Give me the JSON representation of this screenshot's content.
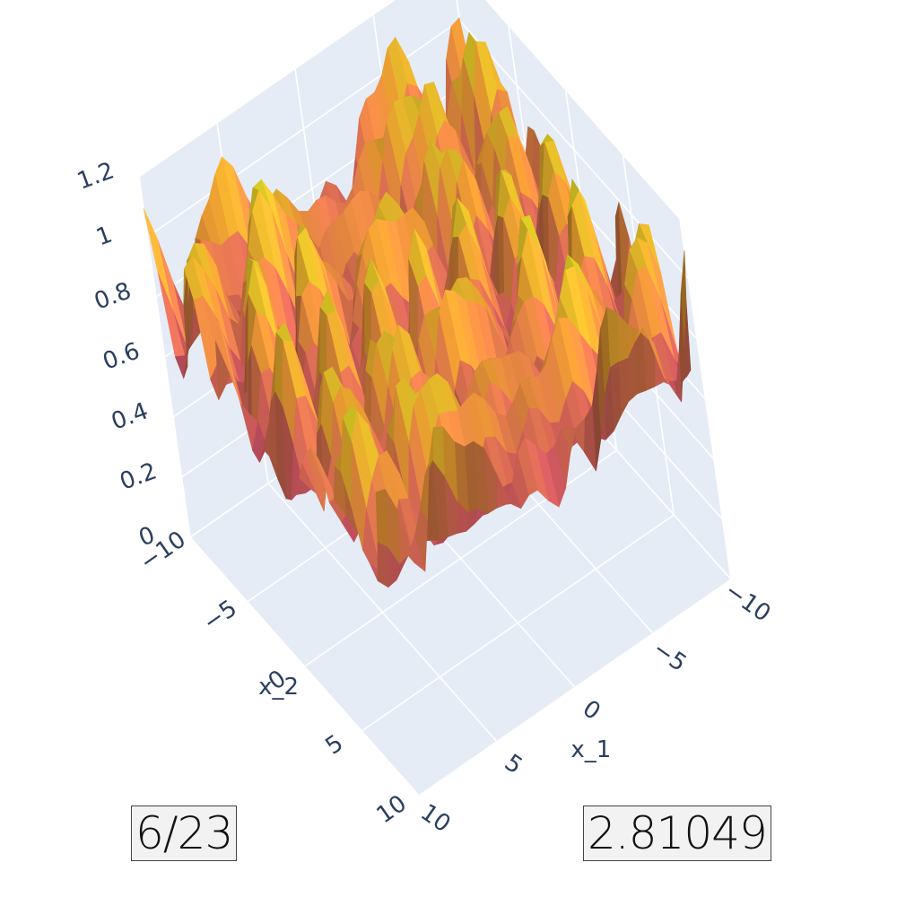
{
  "chart_data": {
    "type": "surface",
    "title": "",
    "x_axis_label": "x_1",
    "y_axis_label": "x_2",
    "z_axis_label": "",
    "x_range": [
      -10,
      10
    ],
    "y_range": [
      -10,
      10
    ],
    "z_range": [
      0,
      1.2
    ],
    "x_ticks": [
      "−10",
      "−5",
      "0",
      "5",
      "10"
    ],
    "y_ticks": [
      "−10",
      "−5",
      "0",
      "5",
      "10"
    ],
    "z_ticks": [
      "0",
      "0.2",
      "0.4",
      "0.6",
      "0.8",
      "1",
      "1.2"
    ],
    "colorscale": [
      "#0d0887",
      "#6a00a8",
      "#b12a90",
      "#e16462",
      "#fca636",
      "#f0f921"
    ],
    "background": "#e5ecf6",
    "grid": true
  },
  "annotations": {
    "left_badge": "6/23",
    "right_badge": "2.81049"
  }
}
